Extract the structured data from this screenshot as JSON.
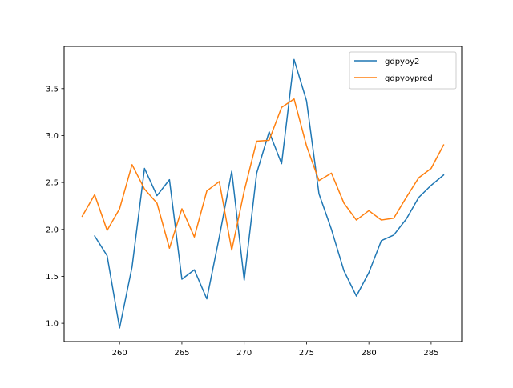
{
  "chart_data": {
    "type": "line",
    "title": "",
    "xlabel": "",
    "ylabel": "",
    "xlim": [
      255.55,
      287.45
    ],
    "ylim": [
      0.805,
      3.95
    ],
    "xticks": [
      260,
      265,
      270,
      275,
      280,
      285
    ],
    "yticks": [
      1.0,
      1.5,
      2.0,
      2.5,
      3.0,
      3.5
    ],
    "xtick_labels": [
      "260",
      "265",
      "270",
      "275",
      "280",
      "285"
    ],
    "ytick_labels": [
      "1.0",
      "1.5",
      "2.0",
      "2.5",
      "3.0",
      "3.5"
    ],
    "grid": false,
    "legend_position": "upper right",
    "series": [
      {
        "name": "gdpyoy2",
        "color": "#1f77b4",
        "x": [
          258,
          259,
          260,
          261,
          262,
          263,
          264,
          265,
          266,
          267,
          268,
          269,
          270,
          271,
          272,
          273,
          274,
          275,
          276,
          277,
          278,
          279,
          280,
          281,
          282,
          283,
          284,
          285,
          286
        ],
        "y": [
          1.93,
          1.72,
          0.95,
          1.6,
          2.65,
          2.36,
          2.53,
          1.47,
          1.57,
          1.26,
          1.92,
          2.62,
          1.46,
          2.6,
          3.04,
          2.7,
          3.81,
          3.37,
          2.38,
          2.0,
          1.56,
          1.29,
          1.54,
          1.88,
          1.94,
          2.11,
          2.34,
          2.47,
          2.58
        ]
      },
      {
        "name": "gdpyoypred",
        "color": "#ff7f0e",
        "x": [
          257,
          258,
          259,
          260,
          261,
          262,
          263,
          264,
          265,
          266,
          267,
          268,
          269,
          270,
          271,
          272,
          273,
          274,
          275,
          276,
          277,
          278,
          279,
          280,
          281,
          282,
          283,
          284,
          285,
          286
        ],
        "y": [
          2.14,
          2.37,
          1.99,
          2.22,
          2.69,
          2.43,
          2.28,
          1.8,
          2.22,
          1.92,
          2.41,
          2.51,
          1.78,
          2.41,
          2.94,
          2.95,
          3.3,
          3.39,
          2.89,
          2.52,
          2.6,
          2.28,
          2.1,
          2.2,
          2.1,
          2.12,
          2.34,
          2.55,
          2.65,
          2.9
        ]
      }
    ]
  }
}
